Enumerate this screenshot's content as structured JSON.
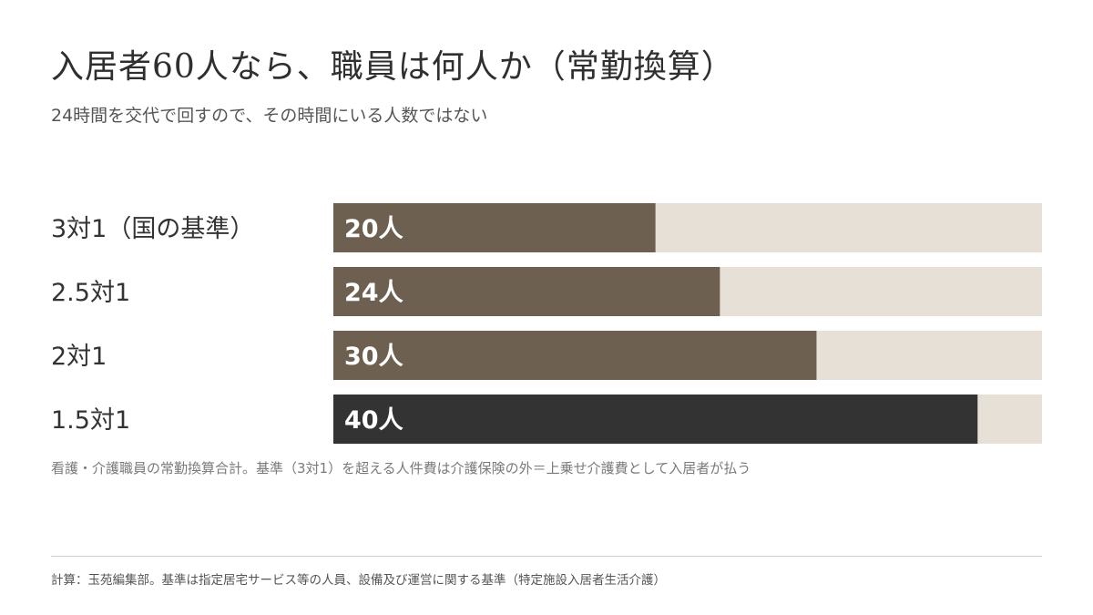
{
  "chart_data": {
    "type": "bar",
    "orientation": "horizontal",
    "title": "入居者60人なら、職員は何人か（常勤換算）",
    "subtitle": "24時間を交代で回すので、その時間にいる人数ではない",
    "categories": [
      "3対1（国の基準）",
      "2.5対1",
      "2対1",
      "1.5対1"
    ],
    "values": [
      20,
      24,
      30,
      40
    ],
    "value_labels": [
      "20人",
      "24人",
      "30人",
      "40人"
    ],
    "xlim": [
      0,
      44
    ],
    "grid": false,
    "legend": "none",
    "note": "看護・介護職員の常勤換算合計。基準（3対1）を超える人件費は介護保険の外＝上乗せ介護費として入居者が払う",
    "source": "計算：玉苑編集部。基準は指定居宅サービス等の人員、設備及び運営に関する基準（特定施設入居者生活介護）"
  },
  "colors": {
    "bar": "#6d6051",
    "bar_highlight": "#333333",
    "track": "#e6e0d6",
    "bar_label": "#ffffff",
    "category_label": "#333333"
  }
}
